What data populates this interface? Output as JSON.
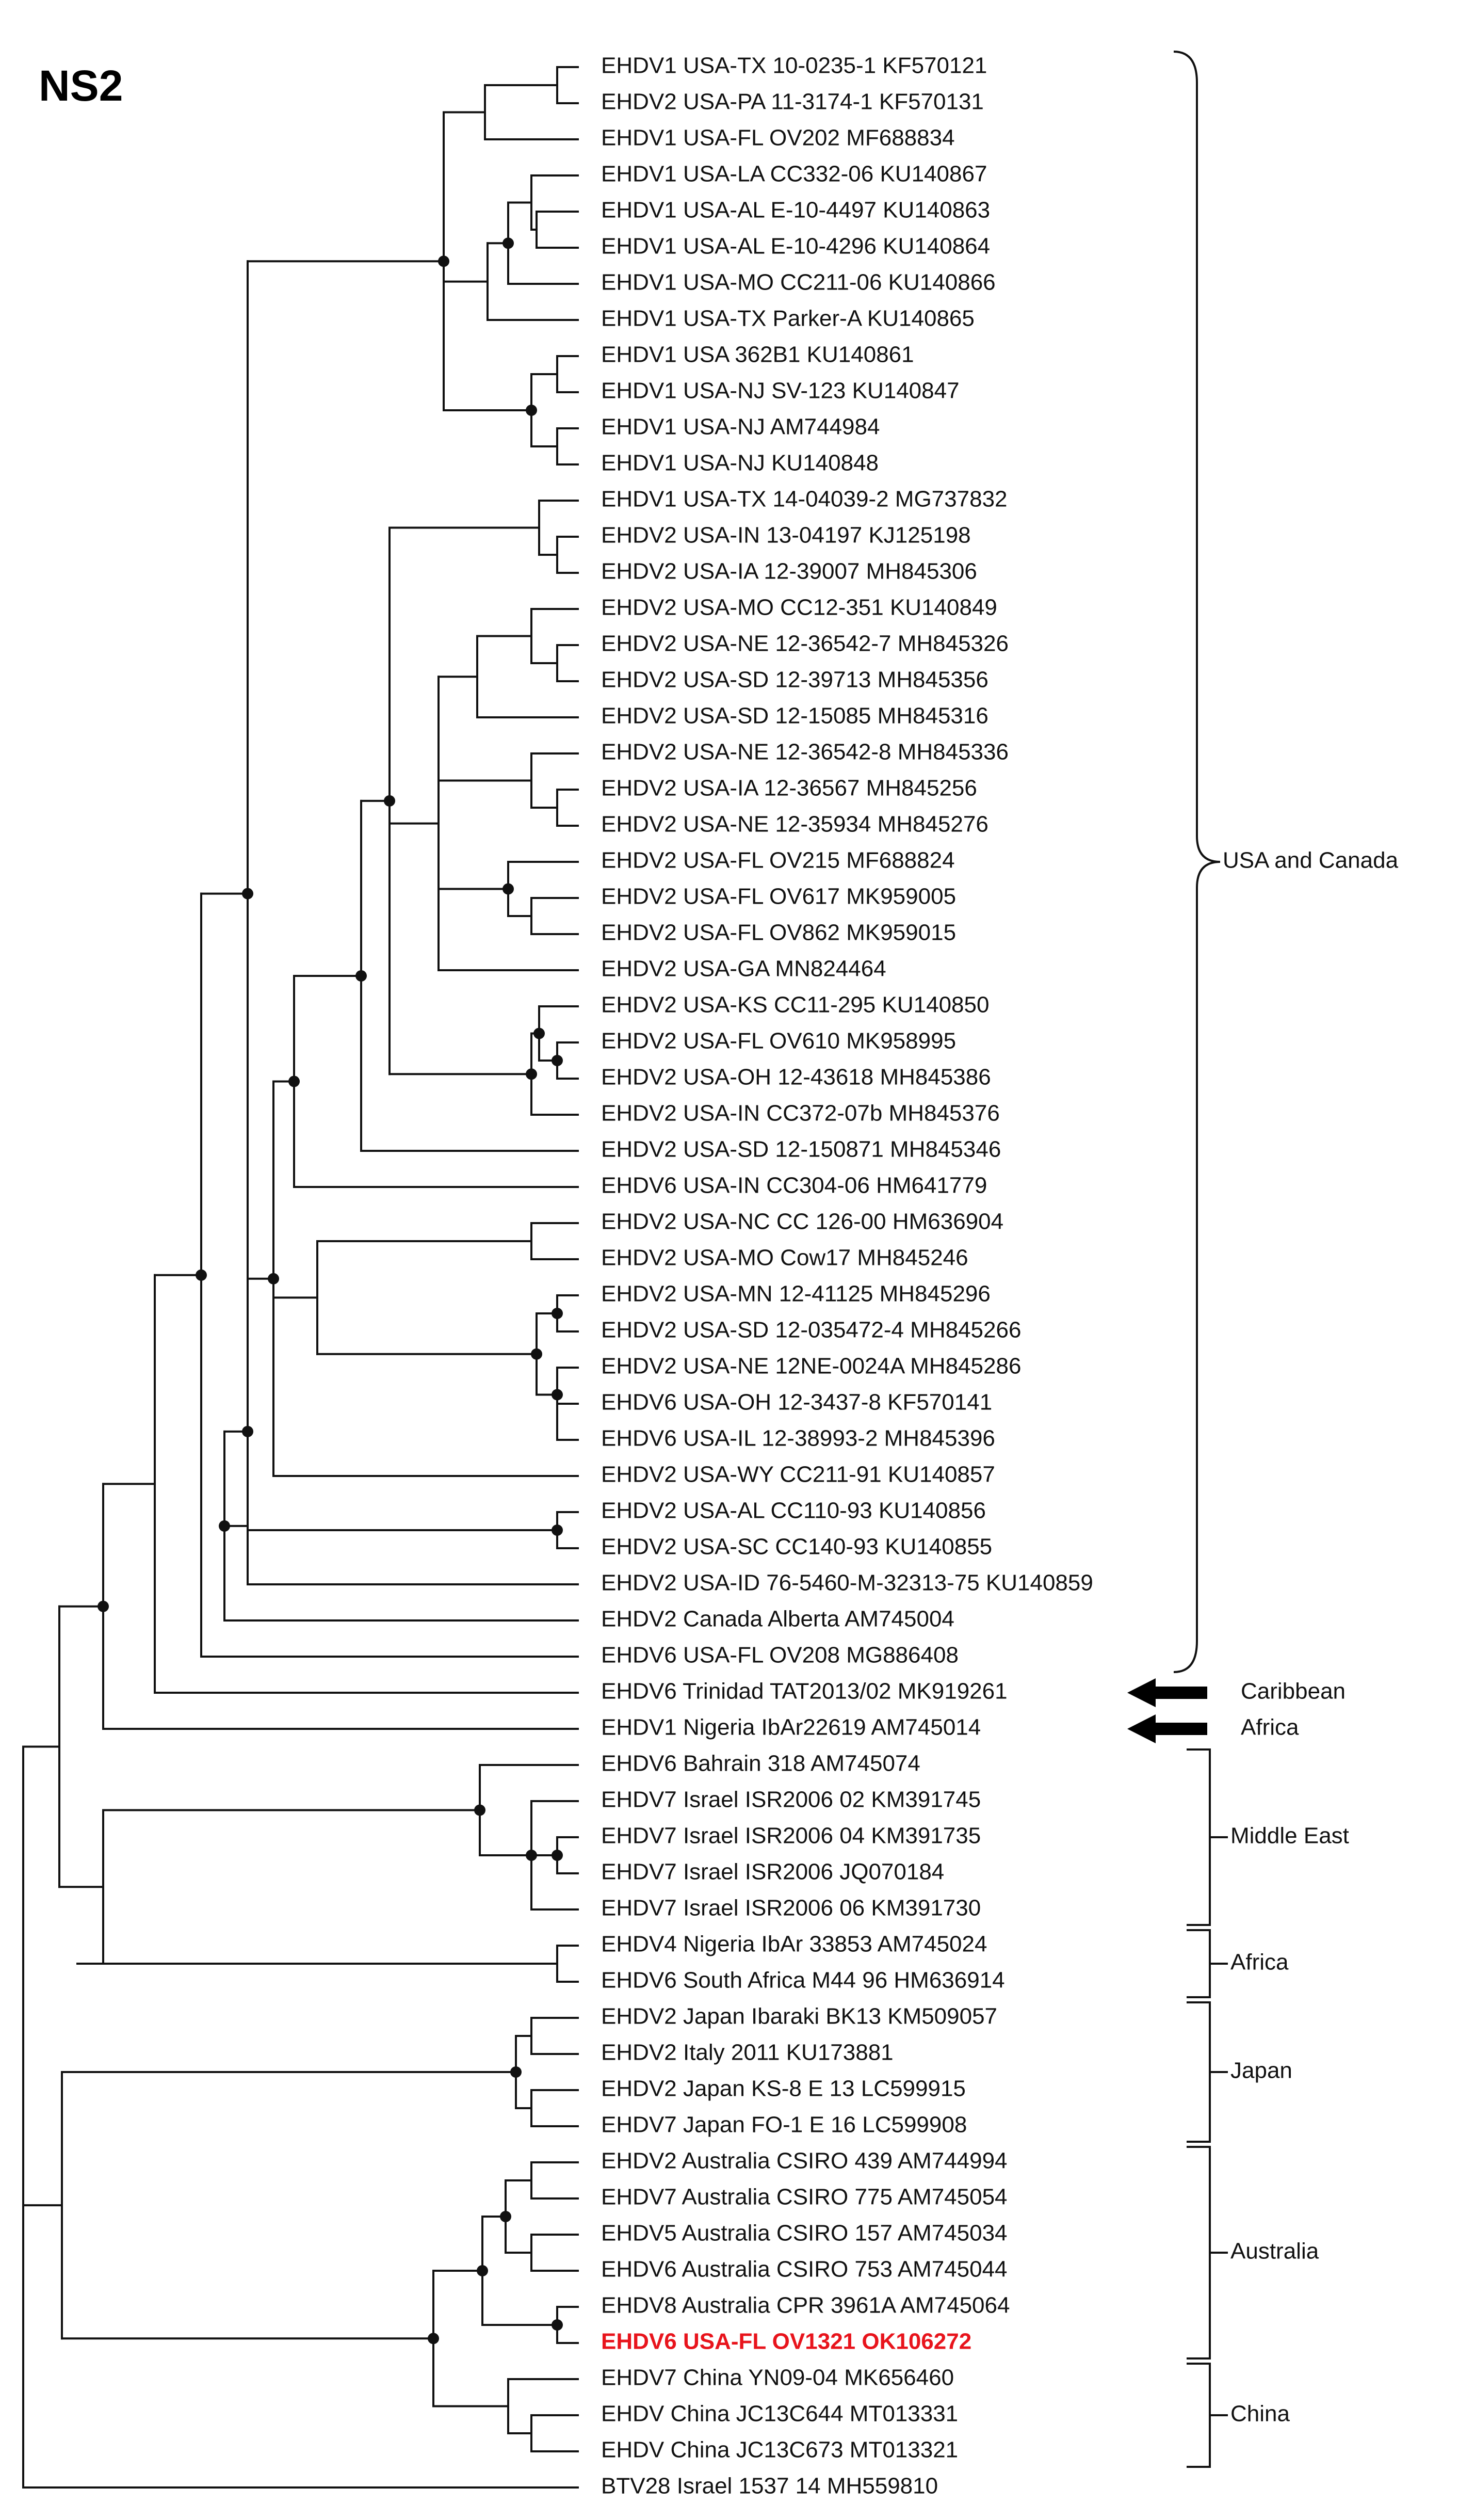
{
  "title": "NS2",
  "highlight_color": "#e8141c",
  "line_color": "#111111",
  "taxa": [
    "EHDV1 USA-TX 10-0235-1 KF570121",
    "EHDV2 USA-PA 11-3174-1 KF570131",
    "EHDV1 USA-FL OV202 MF688834",
    "EHDV1 USA-LA CC332-06 KU140867",
    "EHDV1 USA-AL E-10-4497 KU140863",
    "EHDV1 USA-AL E-10-4296 KU140864",
    "EHDV1 USA-MO CC211-06 KU140866",
    "EHDV1 USA-TX Parker-A KU140865",
    "EHDV1 USA 362B1 KU140861",
    "EHDV1 USA-NJ SV-123 KU140847",
    "EHDV1 USA-NJ AM744984",
    "EHDV1 USA-NJ KU140848",
    "EHDV1 USA-TX 14-04039-2 MG737832",
    "EHDV2 USA-IN 13-04197 KJ125198",
    "EHDV2 USA-IA 12-39007 MH845306",
    "EHDV2 USA-MO CC12-351 KU140849",
    "EHDV2 USA-NE 12-36542-7 MH845326",
    "EHDV2 USA-SD 12-39713 MH845356",
    "EHDV2 USA-SD 12-15085 MH845316",
    "EHDV2 USA-NE 12-36542-8 MH845336",
    "EHDV2 USA-IA 12-36567 MH845256",
    "EHDV2 USA-NE 12-35934 MH845276",
    "EHDV2 USA-FL OV215 MF688824",
    "EHDV2 USA-FL OV617 MK959005",
    "EHDV2 USA-FL OV862 MK959015",
    "EHDV2 USA-GA MN824464",
    "EHDV2 USA-KS CC11-295 KU140850",
    "EHDV2 USA-FL OV610 MK958995",
    "EHDV2 USA-OH 12-43618 MH845386",
    "EHDV2 USA-IN CC372-07b MH845376",
    "EHDV2 USA-SD 12-150871 MH845346",
    "EHDV6 USA-IN CC304-06 HM641779",
    "EHDV2 USA-NC CC 126-00 HM636904",
    "EHDV2 USA-MO Cow17 MH845246",
    "EHDV2 USA-MN 12-41125 MH845296",
    "EHDV2 USA-SD 12-035472-4 MH845266",
    "EHDV2 USA-NE 12NE-0024A MH845286",
    "EHDV6 USA-OH 12-3437-8 KF570141",
    "EHDV6 USA-IL 12-38993-2 MH845396",
    "EHDV2 USA-WY CC211-91 KU140857",
    "EHDV2 USA-AL CC110-93 KU140856",
    "EHDV2 USA-SC CC140-93 KU140855",
    "EHDV2 USA-ID 76-5460-M-32313-75 KU140859",
    "EHDV2 Canada Alberta AM745004",
    "EHDV6 USA-FL OV208 MG886408",
    "EHDV6 Trinidad TAT2013/02 MK919261",
    "EHDV1 Nigeria IbAr22619 AM745014",
    "EHDV6 Bahrain 318 AM745074",
    "EHDV7 Israel ISR2006 02 KM391745",
    "EHDV7 Israel ISR2006 04 KM391735",
    "EHDV7 Israel ISR2006 JQ070184",
    "EHDV7 Israel ISR2006 06 KM391730",
    "EHDV4 Nigeria IbAr 33853 AM745024",
    "EHDV6 South Africa M44 96 HM636914",
    "EHDV2 Japan Ibaraki BK13 KM509057",
    "EHDV2 Italy 2011 KU173881",
    "EHDV2 Japan KS-8 E 13 LC599915",
    "EHDV7 Japan FO-1 E 16 LC599908",
    "EHDV2 Australia CSIRO 439 AM744994",
    "EHDV7 Australia CSIRO 775 AM745054",
    "EHDV5 Australia CSIRO 157 AM745034",
    "EHDV6 Australia CSIRO 753 AM745044",
    "EHDV8 Australia CPR 3961A AM745064",
    "EHDV6 USA-FL OV1321 OK106272",
    "EHDV7 China YN09-04 MK656460",
    "EHDV China JC13C644 MT013331",
    "EHDV China JC13C673 MT013321",
    "BTV28 Israel 1537 14 MH559810"
  ],
  "highlighted_taxon": "EHDV6 USA-FL OV1321 OK106272",
  "clades": [
    {
      "label": "USA and Canada",
      "from": 0,
      "to": 44,
      "style": "brace"
    },
    {
      "label": "Caribbean",
      "from": 45,
      "to": 45,
      "style": "arrow"
    },
    {
      "label": "Africa",
      "from": 46,
      "to": 46,
      "style": "arrow"
    },
    {
      "label": "Middle East",
      "from": 47,
      "to": 51,
      "style": "bracket"
    },
    {
      "label": "Africa",
      "from": 52,
      "to": 53,
      "style": "bracket"
    },
    {
      "label": "Japan",
      "from": 54,
      "to": 57,
      "style": "bracket"
    },
    {
      "label": "Australia",
      "from": 58,
      "to": 63,
      "style": "bracket"
    },
    {
      "label": "China",
      "from": 64,
      "to": 66,
      "style": "bracket"
    }
  ]
}
